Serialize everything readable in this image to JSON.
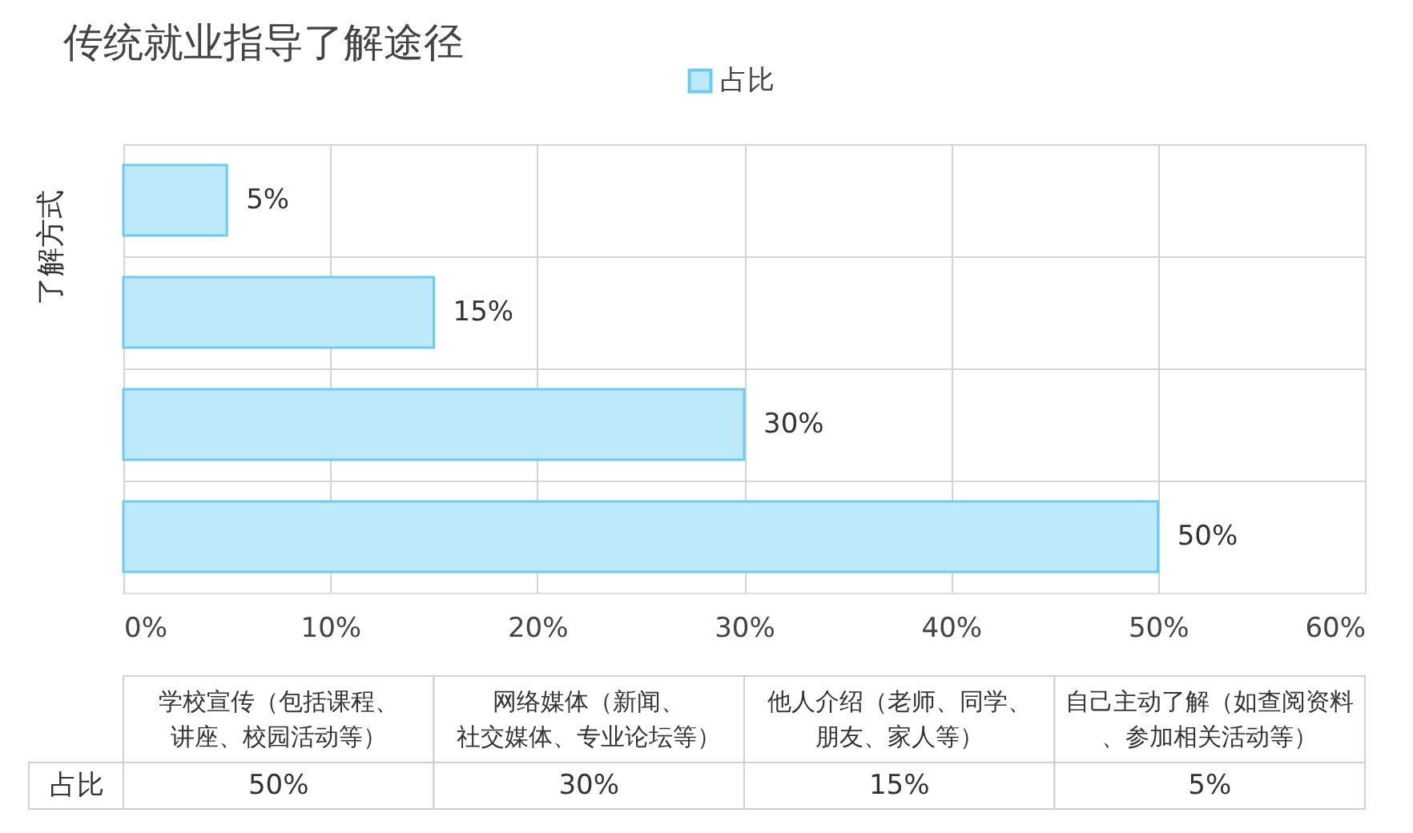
{
  "chart_data": {
    "type": "bar",
    "orientation": "horizontal",
    "title": "传统就业指导了解途径",
    "ylabel": "了解方式",
    "categories": [
      null,
      null,
      null,
      null
    ],
    "series": [
      {
        "name": "占比",
        "color": "#bde9fb",
        "values": [
          5,
          15,
          30,
          50
        ],
        "value_labels": [
          "5%",
          "15%",
          "30%",
          "50%"
        ]
      }
    ],
    "annotations": [
      "学校宣传（包括课程、讲座、校园活动等）",
      "网络媒体（新闻、社交媒体、专业论坛等）",
      "他人介绍（老师、同学、朋友、家人等）",
      "自己主动了解（如查阅资料、参加相关活动等）"
    ],
    "xlim": [
      0,
      60
    ],
    "xticks": [
      {
        "value": 0,
        "label": "0%"
      },
      {
        "value": 10,
        "label": "10%"
      },
      {
        "value": 20,
        "label": "20%"
      },
      {
        "value": 30,
        "label": "30%"
      },
      {
        "value": 40,
        "label": "40%"
      },
      {
        "value": 50,
        "label": "50%"
      },
      {
        "value": 60,
        "label": "60%"
      }
    ],
    "grid": true,
    "legend": "top",
    "tick_labels": "x"
  }
}
